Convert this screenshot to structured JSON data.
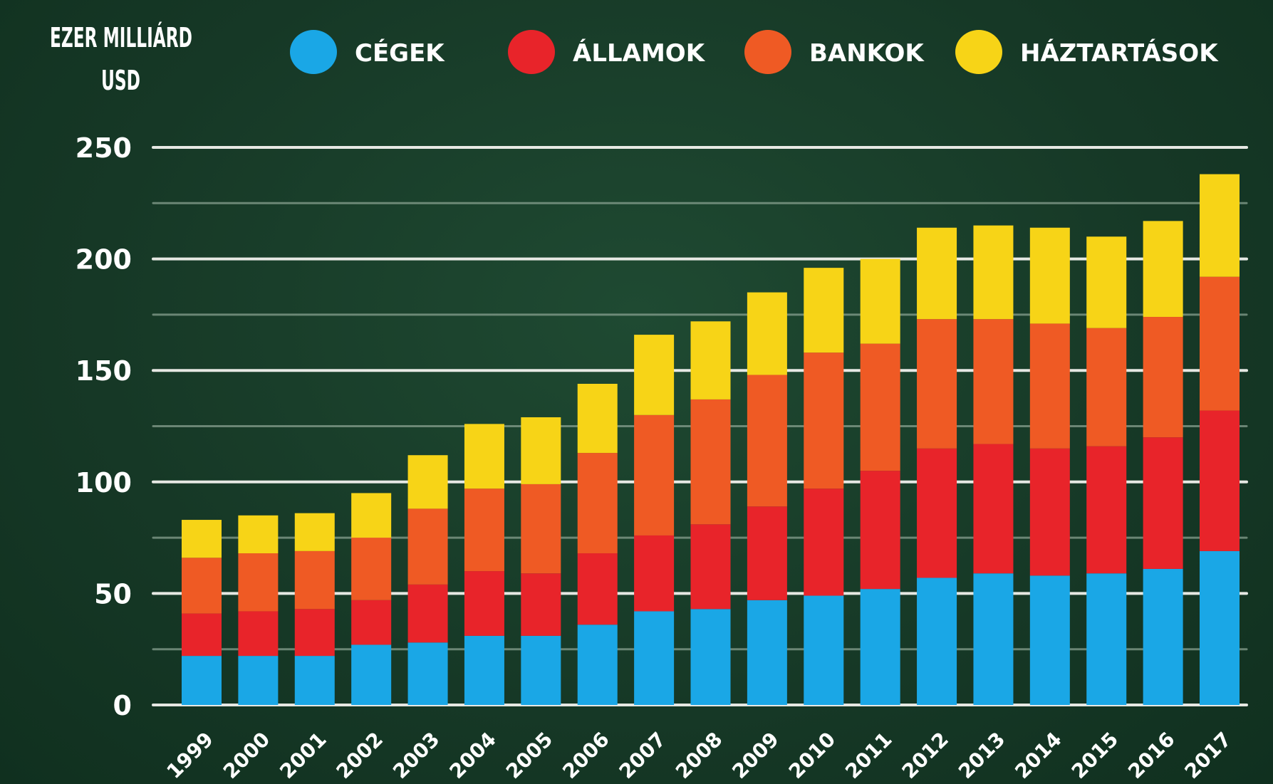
{
  "chart_data": {
    "type": "bar",
    "stacked": true,
    "title": "",
    "ylabel_line1": "EZER MILLIÁRD",
    "ylabel_line2": "USD",
    "xlabel": "",
    "ylim": [
      0,
      250
    ],
    "yticks": [
      "0",
      "50",
      "100",
      "150",
      "200",
      "250"
    ],
    "grid": true,
    "legend_position": "top",
    "categories": [
      "1999",
      "2000",
      "2001",
      "2002",
      "2003",
      "2004",
      "2005",
      "2006",
      "2007",
      "2008",
      "2009",
      "2010",
      "2011",
      "2012",
      "2013",
      "2014",
      "2015",
      "2016",
      "2017"
    ],
    "series": [
      {
        "name": "CÉGEK",
        "color": "#1aa7e6",
        "values": [
          22,
          22,
          22,
          27,
          28,
          31,
          31,
          36,
          42,
          43,
          47,
          49,
          52,
          57,
          59,
          58,
          59,
          61,
          69
        ]
      },
      {
        "name": "ÁLLAMOK",
        "color": "#e8242a",
        "values": [
          19,
          20,
          21,
          20,
          26,
          29,
          28,
          32,
          34,
          38,
          42,
          48,
          53,
          58,
          58,
          57,
          57,
          59,
          63
        ]
      },
      {
        "name": "BANKOK",
        "color": "#ef5a24",
        "values": [
          25,
          26,
          26,
          28,
          34,
          37,
          40,
          45,
          54,
          56,
          59,
          61,
          57,
          58,
          56,
          56,
          53,
          54,
          60
        ]
      },
      {
        "name": "HÁZTARTÁSOK",
        "color": "#f7d417",
        "values": [
          17,
          17,
          17,
          20,
          24,
          29,
          30,
          31,
          36,
          35,
          37,
          38,
          38,
          41,
          42,
          43,
          41,
          43,
          46
        ]
      }
    ]
  }
}
